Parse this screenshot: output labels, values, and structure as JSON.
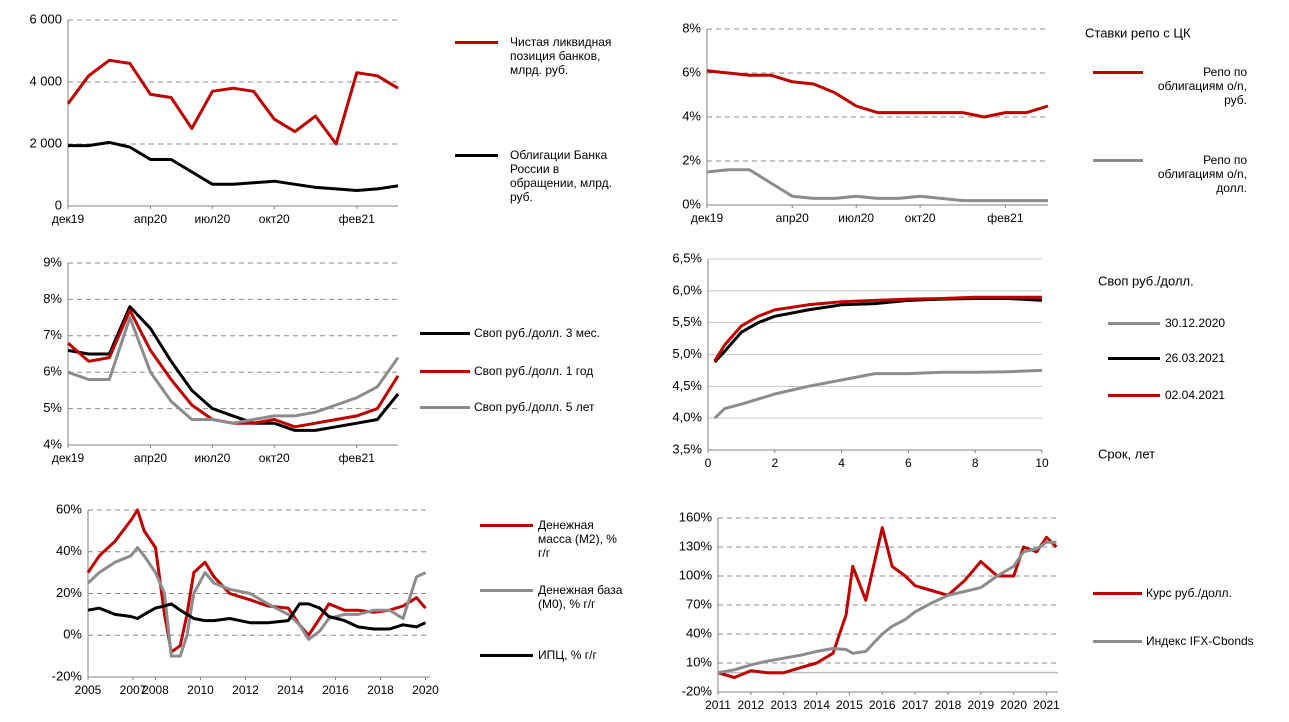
{
  "chart_data": [
    {
      "type": "line",
      "x": [
        "2019-12",
        "2020-01",
        "2020-02",
        "2020-03",
        "2020-04",
        "2020-05",
        "2020-06",
        "2020-07",
        "2020-08",
        "2020-09",
        "2020-10",
        "2020-11",
        "2020-12",
        "2021-01",
        "2021-02",
        "2021-03",
        "2021-04"
      ],
      "xlim": [
        "2019-12",
        "2021-04"
      ],
      "xticks": [
        {
          "value": "2019-12",
          "label": "дек19"
        },
        {
          "value": "2020-04",
          "label": "апр20"
        },
        {
          "value": "2020-07",
          "label": "июл20"
        },
        {
          "value": "2020-10",
          "label": "окт20"
        },
        {
          "value": "2021-02",
          "label": "фев21"
        }
      ],
      "ylim": [
        0,
        6000
      ],
      "yticks": [
        0,
        {
          "value": 2000,
          "label": "2 000"
        },
        {
          "value": 4000,
          "label": "4 000"
        },
        {
          "value": 6000,
          "label": "6 000"
        }
      ],
      "grid": true,
      "series": [
        {
          "name": "Чистая ликвидная позиция банков, млрд. руб.",
          "color": "#c00000",
          "values": [
            3300,
            4200,
            4700,
            4600,
            3600,
            3500,
            2500,
            3700,
            3800,
            3700,
            2800,
            2400,
            2900,
            2000,
            4300,
            4200,
            3800
          ]
        },
        {
          "name": "Облигации Банка России в обращении, млрд. руб.",
          "color": "#000000",
          "values": [
            1950,
            1950,
            2050,
            1900,
            1500,
            1500,
            1100,
            700,
            700,
            750,
            800,
            700,
            600,
            550,
            500,
            550,
            650
          ]
        }
      ]
    },
    {
      "type": "line",
      "title": "Ставки репо с ЦК",
      "x": [
        "2019-12",
        "2020-01",
        "2020-02",
        "2020-03",
        "2020-04",
        "2020-05",
        "2020-06",
        "2020-07",
        "2020-08",
        "2020-09",
        "2020-10",
        "2020-11",
        "2020-12",
        "2021-01",
        "2021-02",
        "2021-03",
        "2021-04"
      ],
      "xlim": [
        "2019-12",
        "2021-04"
      ],
      "xticks": [
        {
          "value": "2019-12",
          "label": "дек19"
        },
        {
          "value": "2020-04",
          "label": "апр20"
        },
        {
          "value": "2020-07",
          "label": "июл20"
        },
        {
          "value": "2020-10",
          "label": "окт20"
        },
        {
          "value": "2021-02",
          "label": "фев21"
        }
      ],
      "ylim": [
        0,
        8
      ],
      "yticks": [
        {
          "value": 0,
          "label": "0%"
        },
        {
          "value": 2,
          "label": "2%"
        },
        {
          "value": 4,
          "label": "4%"
        },
        {
          "value": 6,
          "label": "6%"
        },
        {
          "value": 8,
          "label": "8%"
        }
      ],
      "grid": true,
      "series": [
        {
          "name": "Репо по облигациям o/n, руб.",
          "color": "#c00000",
          "values": [
            6.1,
            6.0,
            5.9,
            5.9,
            5.6,
            5.5,
            5.1,
            4.5,
            4.2,
            4.2,
            4.2,
            4.2,
            4.2,
            4.0,
            4.2,
            4.2,
            4.5
          ]
        },
        {
          "name": "Репо по облигациям o/n, долл.",
          "color": "#8c8c8c",
          "values": [
            1.5,
            1.6,
            1.6,
            1.0,
            0.4,
            0.3,
            0.3,
            0.4,
            0.3,
            0.3,
            0.4,
            0.3,
            0.2,
            0.2,
            0.2,
            0.2,
            0.2
          ]
        }
      ]
    },
    {
      "type": "line",
      "x": [
        "2019-12",
        "2020-01",
        "2020-02",
        "2020-03",
        "2020-04",
        "2020-05",
        "2020-06",
        "2020-07",
        "2020-08",
        "2020-09",
        "2020-10",
        "2020-11",
        "2020-12",
        "2021-01",
        "2021-02",
        "2021-03",
        "2021-04"
      ],
      "xlim": [
        "2019-12",
        "2021-04"
      ],
      "xticks": [
        {
          "value": "2019-12",
          "label": "дек19"
        },
        {
          "value": "2020-04",
          "label": "апр20"
        },
        {
          "value": "2020-07",
          "label": "июл20"
        },
        {
          "value": "2020-10",
          "label": "окт20"
        },
        {
          "value": "2021-02",
          "label": "фев21"
        }
      ],
      "ylim": [
        4,
        9
      ],
      "yticks": [
        {
          "value": 4,
          "label": "4%"
        },
        {
          "value": 5,
          "label": "5%"
        },
        {
          "value": 6,
          "label": "6%"
        },
        {
          "value": 7,
          "label": "7%"
        },
        {
          "value": 8,
          "label": "8%"
        },
        {
          "value": 9,
          "label": "9%"
        }
      ],
      "grid": true,
      "series": [
        {
          "name": "Своп руб./долл. 3 мес.",
          "color": "#000000",
          "values": [
            6.6,
            6.5,
            6.5,
            7.8,
            7.2,
            6.3,
            5.5,
            5.0,
            4.8,
            4.6,
            4.6,
            4.4,
            4.4,
            4.5,
            4.6,
            4.7,
            5.4
          ]
        },
        {
          "name": "Своп руб./долл. 1 год",
          "color": "#c00000",
          "values": [
            6.8,
            6.3,
            6.4,
            7.7,
            6.6,
            5.8,
            5.1,
            4.7,
            4.6,
            4.6,
            4.7,
            4.5,
            4.6,
            4.7,
            4.8,
            5.0,
            5.9
          ]
        },
        {
          "name": "Своп руб./долл. 5 лет",
          "color": "#8c8c8c",
          "values": [
            6.0,
            5.8,
            5.8,
            7.5,
            6.0,
            5.2,
            4.7,
            4.7,
            4.6,
            4.7,
            4.8,
            4.8,
            4.9,
            5.1,
            5.3,
            5.6,
            6.4
          ]
        }
      ]
    },
    {
      "type": "line",
      "title": "Своп руб./долл.",
      "x_label": "Срок, лет",
      "x": [
        0.2,
        0.5,
        1,
        1.5,
        2,
        3,
        4,
        5,
        6,
        7,
        8,
        9,
        10
      ],
      "xlim": [
        0,
        10
      ],
      "xticks": [
        0,
        2,
        4,
        6,
        8,
        10
      ],
      "ylim": [
        3.5,
        6.5
      ],
      "yticks": [
        {
          "value": 3.5,
          "label": "3,5%"
        },
        {
          "value": 4,
          "label": "4,0%"
        },
        {
          "value": 4.5,
          "label": "4,5%"
        },
        {
          "value": 5,
          "label": "5,0%"
        },
        {
          "value": 5.5,
          "label": "5,5%"
        },
        {
          "value": 6,
          "label": "6,0%"
        },
        {
          "value": 6.5,
          "label": "6,5%"
        }
      ],
      "grid": true,
      "series": [
        {
          "name": "30.12.2020",
          "color": "#8c8c8c",
          "values": [
            4.0,
            4.15,
            4.22,
            4.3,
            4.38,
            4.5,
            4.6,
            4.7,
            4.7,
            4.72,
            4.72,
            4.73,
            4.75
          ]
        },
        {
          "name": "26.03.2021",
          "color": "#000000",
          "values": [
            4.88,
            5.05,
            5.35,
            5.5,
            5.6,
            5.7,
            5.78,
            5.8,
            5.85,
            5.87,
            5.88,
            5.88,
            5.85
          ]
        },
        {
          "name": "02.04.2021",
          "color": "#c00000",
          "values": [
            4.9,
            5.15,
            5.45,
            5.6,
            5.7,
            5.78,
            5.83,
            5.85,
            5.87,
            5.88,
            5.9,
            5.9,
            5.9
          ]
        }
      ]
    },
    {
      "type": "line",
      "x": [
        2005,
        2005.5,
        2006.2,
        2006.9,
        2007.2,
        2007.5,
        2008,
        2008.4,
        2008.7,
        2009.1,
        2009.4,
        2009.7,
        2010.2,
        2010.6,
        2011.3,
        2012.2,
        2013,
        2013.9,
        2014.4,
        2014.8,
        2015.3,
        2015.7,
        2016.4,
        2017,
        2017.7,
        2018.4,
        2019,
        2019.6,
        2020
      ],
      "xlim": [
        2005,
        2020.2
      ],
      "xticks": [
        2005,
        2007,
        2008,
        2010,
        2012,
        2014,
        2016,
        2018,
        2020
      ],
      "ylim": [
        -20,
        60
      ],
      "yticks": [
        {
          "value": -20,
          "label": "-20%"
        },
        {
          "value": 0,
          "label": "0%"
        },
        {
          "value": 20,
          "label": "20%"
        },
        {
          "value": 40,
          "label": "40%"
        },
        {
          "value": 60,
          "label": "60%"
        }
      ],
      "grid": true,
      "series": [
        {
          "name": "Денежная масса (M2), % г/г",
          "color": "#c00000",
          "values": [
            30,
            38,
            45,
            55,
            60,
            50,
            42,
            10,
            -8,
            -5,
            10,
            30,
            35,
            28,
            20,
            17,
            14,
            13,
            5,
            0,
            8,
            15,
            12,
            12,
            11,
            12,
            14,
            18,
            13
          ]
        },
        {
          "name": "Денежная база (M0), % г/г",
          "color": "#8c8c8c",
          "values": [
            25,
            30,
            35,
            38,
            42,
            38,
            30,
            20,
            -10,
            -10,
            0,
            20,
            30,
            25,
            22,
            20,
            15,
            10,
            5,
            -2,
            2,
            8,
            10,
            10,
            12,
            12,
            8,
            28,
            30
          ]
        },
        {
          "name": "ИПЦ, % г/г",
          "color": "#000000",
          "values": [
            12,
            13,
            10,
            9,
            8,
            10,
            13,
            14,
            15,
            12,
            10,
            8,
            7,
            7,
            8,
            6,
            6,
            7,
            15,
            15,
            13,
            9,
            7,
            4,
            3,
            3,
            5,
            4,
            6
          ]
        }
      ]
    },
    {
      "type": "line",
      "x": [
        2011,
        2011.5,
        2012,
        2012.5,
        2013,
        2013.5,
        2014,
        2014.5,
        2014.9,
        2015.1,
        2015.5,
        2016,
        2016.3,
        2016.7,
        2017,
        2017.5,
        2018,
        2018.5,
        2019,
        2019.5,
        2020,
        2020.3,
        2020.7,
        2021,
        2021.3
      ],
      "xlim": [
        2011,
        2021.35
      ],
      "xticks": [
        2011,
        2012,
        2013,
        2014,
        2015,
        2016,
        2017,
        2018,
        2019,
        2020,
        2021
      ],
      "ylim": [
        -20,
        160
      ],
      "yticks": [
        {
          "value": -20,
          "label": "-20%"
        },
        {
          "value": 10,
          "label": "10%"
        },
        {
          "value": 40,
          "label": "40%"
        },
        {
          "value": 70,
          "label": "70%"
        },
        {
          "value": 100,
          "label": "100%"
        },
        {
          "value": 130,
          "label": "130%"
        },
        {
          "value": 160,
          "label": "160%"
        }
      ],
      "grid": true,
      "series": [
        {
          "name": "Курс руб./долл.",
          "color": "#c00000",
          "values": [
            0,
            -5,
            2,
            0,
            0,
            5,
            10,
            20,
            60,
            110,
            75,
            150,
            110,
            100,
            90,
            85,
            80,
            95,
            115,
            100,
            100,
            130,
            125,
            140,
            130
          ]
        },
        {
          "name": "Индекс IFX-Cbonds",
          "color": "#8c8c8c",
          "values": [
            0,
            3,
            8,
            12,
            15,
            18,
            22,
            25,
            24,
            20,
            22,
            40,
            48,
            55,
            63,
            72,
            80,
            84,
            88,
            100,
            110,
            125,
            128,
            135,
            135
          ]
        }
      ]
    }
  ]
}
